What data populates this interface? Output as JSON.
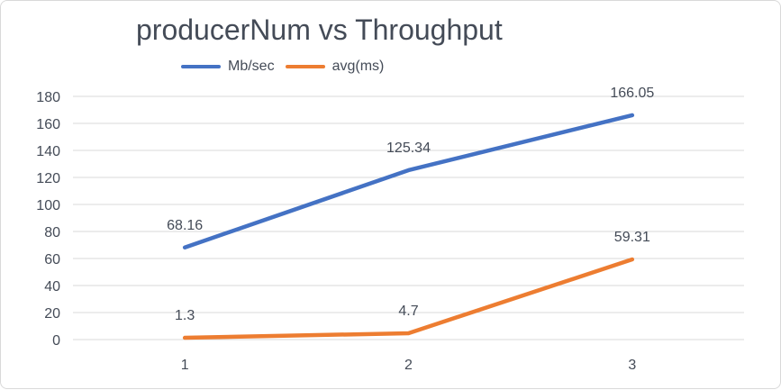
{
  "chart_data": {
    "type": "line",
    "title": "producerNum vs Throughput",
    "categories": [
      "1",
      "2",
      "3"
    ],
    "ylim": [
      0,
      180
    ],
    "yticks": [
      0,
      20,
      40,
      60,
      80,
      100,
      120,
      140,
      160,
      180
    ],
    "yticks_text": [
      "0",
      "20",
      "40",
      "60",
      "80",
      "100",
      "120",
      "140",
      "160",
      "180"
    ],
    "grid": true,
    "legend_position": "top-left",
    "series": [
      {
        "name": "Mb/sec",
        "color": "#4472c4",
        "values": [
          68.16,
          125.34,
          166.05
        ],
        "labels": [
          "68.16",
          "125.34",
          "166.05"
        ]
      },
      {
        "name": "avg(ms)",
        "color": "#ed7d31",
        "values": [
          1.3,
          4.7,
          59.31
        ],
        "labels": [
          "1.3",
          "4.7",
          "59.31"
        ]
      }
    ]
  }
}
